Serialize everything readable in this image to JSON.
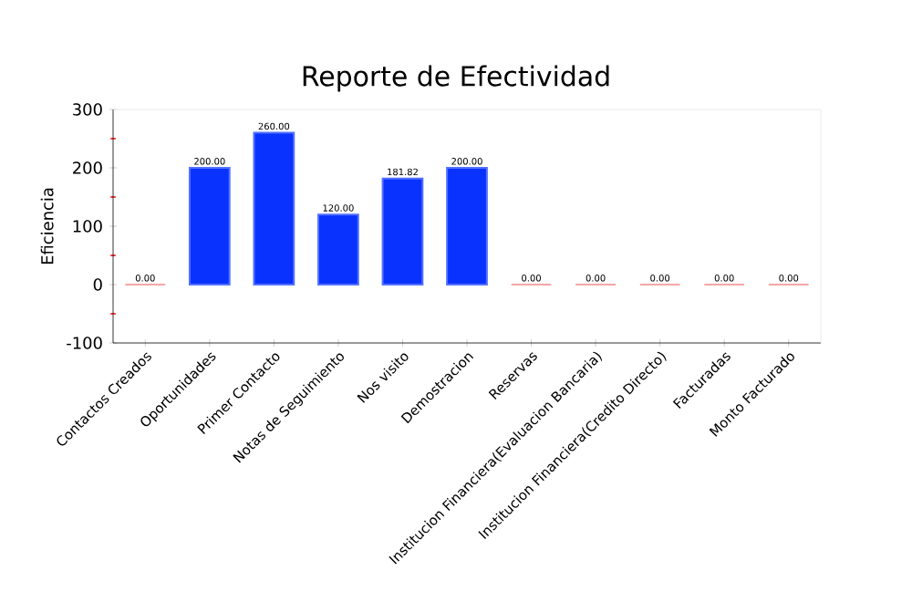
{
  "chart_data": {
    "type": "bar",
    "title": "Reporte de Efectividad",
    "ylabel": "Eficiencia",
    "categories": [
      "Contactos Creados",
      "Oportunidades",
      "Primer Contacto",
      "Notas de Seguimiento",
      "Nos visito",
      "Demostracion",
      "Reservas",
      "Institucion Financiera(Evaluacion Bancaria)",
      "Institucion Financiera(Credito Directo)",
      "Facturadas",
      "Monto Facturado"
    ],
    "values": [
      0,
      200,
      260,
      120,
      181.82,
      200,
      0,
      0,
      0,
      0,
      0
    ],
    "value_labels": [
      "0.00",
      "200.00",
      "260.00",
      "120.00",
      "181.82",
      "200.00",
      "0.00",
      "0.00",
      "0.00",
      "0.00",
      "0.00"
    ],
    "colors": [
      "#f08080",
      "#0a32ff",
      "#0a32ff",
      "#0a32ff",
      "#0a32ff",
      "#0a32ff",
      "#f08080",
      "#f08080",
      "#f08080",
      "#f08080",
      "#f08080"
    ],
    "ylim": [
      -100,
      300
    ],
    "yticks": [
      -100,
      0,
      100,
      200,
      300
    ],
    "grid": false
  }
}
